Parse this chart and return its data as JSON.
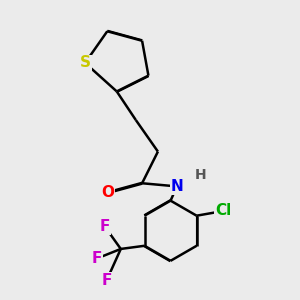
{
  "bg_color": "#ebebeb",
  "atom_colors": {
    "S": "#c8c800",
    "O": "#ff0000",
    "N": "#0000ee",
    "Cl": "#00aa00",
    "F": "#cc00cc",
    "C": "#000000",
    "H": "#555555"
  },
  "bond_color": "#000000",
  "bond_width": 1.8,
  "font_size_atom": 11,
  "font_size_H": 10
}
